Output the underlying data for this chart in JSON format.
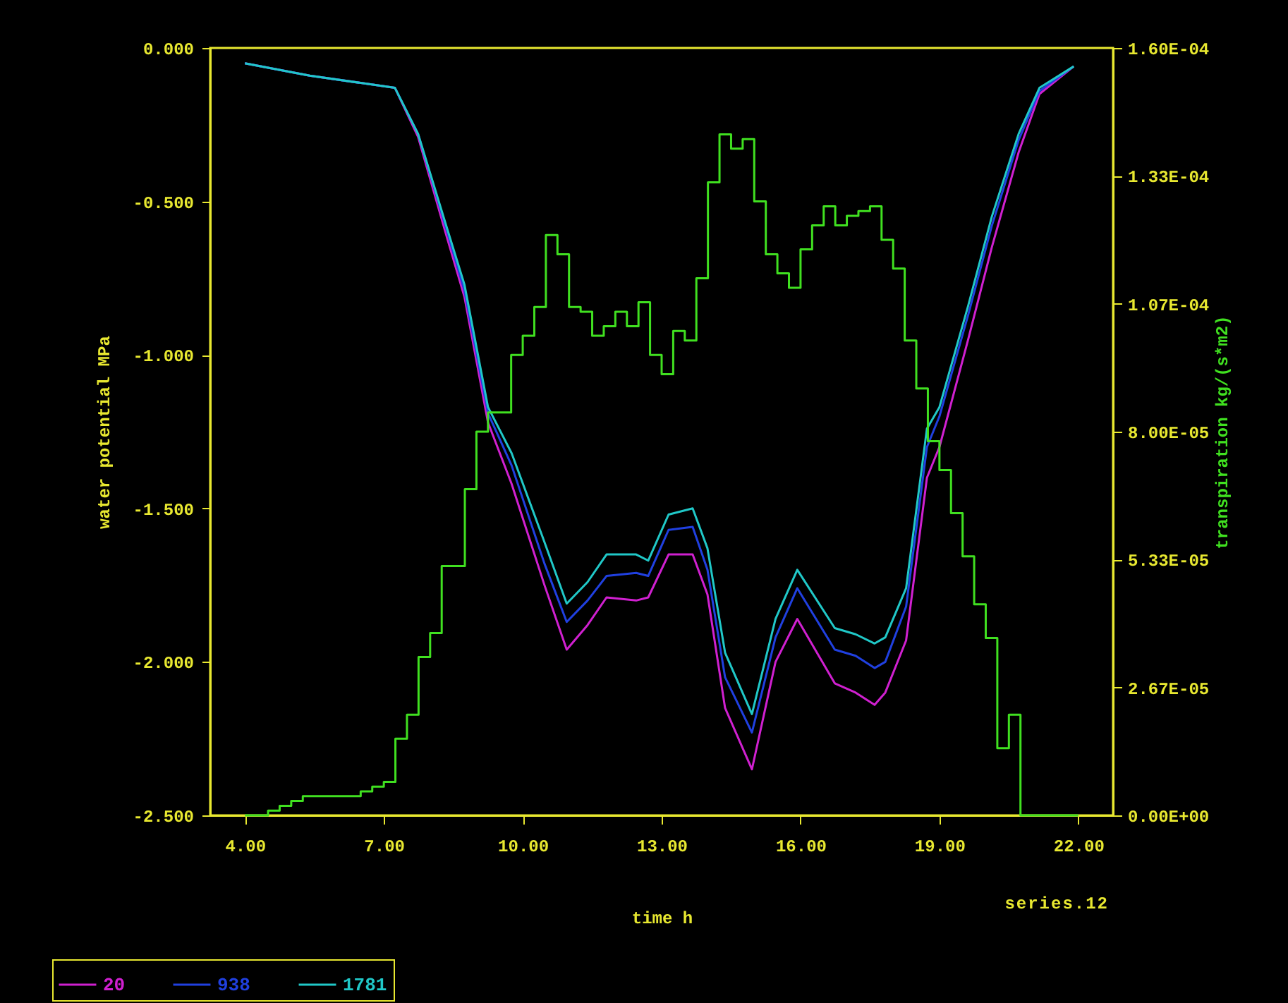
{
  "chart_data": {
    "type": "line",
    "xlabel": "time h",
    "ylabel": "water potential MPa",
    "y2label": "transpiration kg/(s*m2)",
    "annotations": [
      "series.12"
    ],
    "xlim": [
      3.25,
      22.75
    ],
    "xticks": [
      {
        "value": 4,
        "label": "4.00"
      },
      {
        "value": 7,
        "label": "7.00"
      },
      {
        "value": 10,
        "label": "10.00"
      },
      {
        "value": 13,
        "label": "13.00"
      },
      {
        "value": 16,
        "label": "16.00"
      },
      {
        "value": 19,
        "label": "19.00"
      },
      {
        "value": 22,
        "label": "22.00"
      }
    ],
    "ylim": [
      -2.5,
      0
    ],
    "yticks": [
      {
        "value": -2.5,
        "label": "-2.500"
      },
      {
        "value": -2,
        "label": "-2.000"
      },
      {
        "value": -1.5,
        "label": "-1.500"
      },
      {
        "value": -1,
        "label": "-1.000"
      },
      {
        "value": -0.5,
        "label": "-0.500"
      },
      {
        "value": 0,
        "label": "0.000"
      }
    ],
    "y2lim": [
      0,
      0.00016
    ],
    "y2ticks": [
      {
        "value": 0,
        "label": "0.00E+00"
      },
      {
        "value": 2.66667e-05,
        "label": "2.67E-05"
      },
      {
        "value": 5.33333e-05,
        "label": "5.33E-05"
      },
      {
        "value": 8e-05,
        "label": "8.00E-05"
      },
      {
        "value": 0.000106667,
        "label": "1.07E-04"
      },
      {
        "value": 0.000133333,
        "label": "1.33E-04"
      },
      {
        "value": 0.00016,
        "label": "1.60E-04"
      }
    ],
    "legend": "bottom left",
    "grid": false,
    "marker": "none",
    "line_style": "solid",
    "x": [
      4,
      5.4,
      7.24,
      7.74,
      8.35,
      8.74,
      9.25,
      9.76,
      10.47,
      10.95,
      11.4,
      11.81,
      12.45,
      12.71,
      13.15,
      13.67,
      13.99,
      14.37,
      14.95,
      15.46,
      15.93,
      16.74,
      17.19,
      17.6,
      17.83,
      18.28,
      18.73,
      19.0,
      19.62,
      20.13,
      20.71,
      21.16,
      21.9
    ],
    "series": [
      {
        "name": "20",
        "color": "#d020d0",
        "values": [
          -0.05,
          -0.09,
          -0.13,
          -0.29,
          -0.61,
          -0.81,
          -1.22,
          -1.42,
          -1.75,
          -1.96,
          -1.88,
          -1.79,
          -1.8,
          -1.79,
          -1.65,
          -1.65,
          -1.78,
          -2.15,
          -2.35,
          -2.0,
          -1.86,
          -2.07,
          -2.1,
          -2.14,
          -2.1,
          -1.93,
          -1.4,
          -1.3,
          -0.95,
          -0.65,
          -0.34,
          -0.15,
          -0.06
        ]
      },
      {
        "name": "938",
        "color": "#2040e0",
        "values": [
          -0.05,
          -0.09,
          -0.13,
          -0.28,
          -0.59,
          -0.79,
          -1.19,
          -1.36,
          -1.68,
          -1.87,
          -1.8,
          -1.72,
          -1.71,
          -1.72,
          -1.57,
          -1.56,
          -1.7,
          -2.05,
          -2.23,
          -1.92,
          -1.76,
          -1.96,
          -1.98,
          -2.02,
          -2.0,
          -1.82,
          -1.3,
          -1.2,
          -0.87,
          -0.58,
          -0.3,
          -0.14,
          -0.06
        ]
      },
      {
        "name": "1781",
        "color": "#20c8c8",
        "values": [
          -0.05,
          -0.09,
          -0.13,
          -0.28,
          -0.58,
          -0.77,
          -1.17,
          -1.32,
          -1.61,
          -1.81,
          -1.74,
          -1.65,
          -1.65,
          -1.67,
          -1.52,
          -1.5,
          -1.63,
          -1.97,
          -2.17,
          -1.86,
          -1.7,
          -1.89,
          -1.91,
          -1.94,
          -1.92,
          -1.76,
          -1.24,
          -1.17,
          -0.84,
          -0.55,
          -0.28,
          -0.13,
          -0.06
        ]
      },
      {
        "type": "step",
        "axis": "y2",
        "color": "#40e020",
        "x": [
          4,
          4.5,
          4.75,
          5.0,
          5.25,
          6.0,
          6.5,
          6.75,
          7.0,
          7.25,
          7.5,
          7.75,
          8.0,
          8.25,
          8.75,
          9.0,
          9.25,
          9.75,
          10.0,
          10.25,
          10.5,
          10.75,
          11.0,
          11.25,
          11.5,
          11.75,
          12.0,
          12.25,
          12.5,
          12.75,
          13.0,
          13.25,
          13.5,
          13.75,
          14.0,
          14.25,
          14.5,
          14.75,
          15.0,
          15.25,
          15.5,
          15.75,
          16.0,
          16.25,
          16.5,
          16.75,
          17.0,
          17.25,
          17.5,
          17.75,
          18.0,
          18.25,
          18.5,
          18.75,
          19.0,
          19.25,
          19.5,
          19.75,
          20.0,
          20.25,
          20.5,
          20.75,
          22.0
        ],
        "values": [
          0,
          1e-06,
          2e-06,
          3e-06,
          4e-06,
          4e-06,
          5e-06,
          6e-06,
          7e-06,
          1.6e-05,
          2.1e-05,
          3.3e-05,
          3.8e-05,
          5.2e-05,
          6.8e-05,
          8e-05,
          8.4e-05,
          9.6e-05,
          0.0001,
          0.000106,
          0.000121,
          0.000117,
          0.000106,
          0.000105,
          0.0001,
          0.000102,
          0.000105,
          0.000102,
          0.000107,
          9.6e-05,
          9.2e-05,
          0.000101,
          9.9e-05,
          0.000112,
          0.000132,
          0.000142,
          0.000139,
          0.000141,
          0.000128,
          0.000117,
          0.000113,
          0.00011,
          0.000118,
          0.000123,
          0.000127,
          0.000123,
          0.000125,
          0.000126,
          0.000127,
          0.00012,
          0.000114,
          9.9e-05,
          8.9e-05,
          7.8e-05,
          7.2e-05,
          6.3e-05,
          5.4e-05,
          4.4e-05,
          3.7e-05,
          1.4e-05,
          2.1e-05,
          0,
          0
        ]
      }
    ]
  }
}
